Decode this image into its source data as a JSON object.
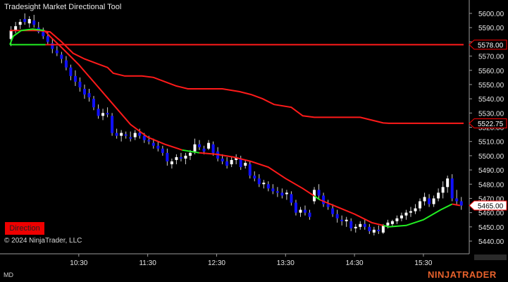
{
  "title": "Tradesight Market Directional Tool",
  "copyright": "© 2024 NinjaTrader, LLC",
  "direction_button": "Direction",
  "footer_left": "MD",
  "logo": "NINJATRADER",
  "colors": {
    "background": "#000000",
    "bull_candle": "#ffffff",
    "bear_candle": "#1010ff",
    "wick": "#cfcfcf",
    "red_line": "#ff1a1a",
    "green_line": "#22ee22",
    "price_marker": "#ff0000",
    "logo": "#e8622c"
  },
  "chart_data": {
    "type": "candlestick",
    "y_ticks": [
      "5600.00",
      "5590.00",
      "5580.00",
      "5570.00",
      "5560.00",
      "5550.00",
      "5540.00",
      "5530.00",
      "5520.00",
      "5510.00",
      "5500.00",
      "5490.00",
      "5480.00",
      "5470.00",
      "5460.00",
      "5450.00",
      "5440.00"
    ],
    "x_ticks": [
      "10:30",
      "11:30",
      "12:30",
      "13:30",
      "14:30",
      "15:30"
    ],
    "ylim": [
      5437.5,
      5606
    ],
    "xlim": [
      "09:30",
      "16:05"
    ],
    "price_labels": [
      {
        "label": "5578.00",
        "value": 5578.0,
        "style": "red"
      },
      {
        "label": "5522.75",
        "value": 5522.75,
        "style": "red"
      },
      {
        "label": "5465.00",
        "value": 5465.0,
        "style": "current"
      }
    ],
    "horizontal_levels": [
      {
        "value": 5578.0,
        "segments": [
          {
            "from": "09:30",
            "to": "10:01",
            "color": "green"
          },
          {
            "from": "10:01",
            "to": "16:05",
            "color": "red"
          }
        ]
      }
    ],
    "upper_red_line": [
      [
        "09:30",
        5588
      ],
      [
        "09:45",
        5588
      ],
      [
        "09:55",
        5588
      ],
      [
        "10:05",
        5587
      ],
      [
        "10:15",
        5580
      ],
      [
        "10:25",
        5572
      ],
      [
        "10:35",
        5568
      ],
      [
        "10:45",
        5565
      ],
      [
        "10:55",
        5562
      ],
      [
        "11:00",
        5558
      ],
      [
        "11:10",
        5556
      ],
      [
        "11:25",
        5556
      ],
      [
        "11:35",
        5555
      ],
      [
        "11:45",
        5552
      ],
      [
        "11:55",
        5549
      ],
      [
        "12:05",
        5547
      ],
      [
        "12:35",
        5547
      ],
      [
        "12:50",
        5545
      ],
      [
        "13:00",
        5543
      ],
      [
        "13:10",
        5540
      ],
      [
        "13:20",
        5536
      ],
      [
        "13:35",
        5534
      ],
      [
        "13:45",
        5528
      ],
      [
        "13:55",
        5527
      ],
      [
        "14:10",
        5527
      ],
      [
        "14:35",
        5527
      ],
      [
        "14:45",
        5525
      ],
      [
        "14:55",
        5523
      ],
      [
        "15:00",
        5522.75
      ],
      [
        "16:05",
        5522.75
      ]
    ],
    "lower_line": [
      [
        "09:30",
        5578
      ],
      [
        "09:33",
        5584
      ],
      [
        "09:40",
        5588
      ],
      [
        "09:50",
        5589
      ],
      [
        "10:00",
        5588
      ],
      [
        "10:06",
        5583
      ],
      [
        "10:15",
        5576
      ],
      [
        "10:30",
        5564
      ],
      [
        "10:45",
        5550
      ],
      [
        "11:00",
        5536
      ],
      [
        "11:15",
        5522
      ],
      [
        "11:30",
        5513
      ],
      [
        "11:45",
        5508
      ],
      [
        "12:00",
        5504
      ],
      [
        "12:15",
        5502
      ],
      [
        "12:30",
        5501
      ],
      [
        "12:45",
        5499
      ],
      [
        "13:00",
        5496
      ],
      [
        "13:15",
        5492
      ],
      [
        "13:30",
        5484
      ],
      [
        "13:45",
        5477
      ],
      [
        "14:00",
        5469
      ],
      [
        "14:15",
        5464
      ],
      [
        "14:30",
        5459
      ],
      [
        "14:45",
        5453
      ],
      [
        "15:00",
        5450
      ],
      [
        "15:15",
        5451
      ],
      [
        "15:30",
        5455
      ],
      [
        "15:45",
        5462
      ],
      [
        "15:55",
        5466
      ],
      [
        "16:02",
        5465
      ]
    ],
    "lower_line_colors": [
      {
        "from": "09:30",
        "to": "10:00",
        "color": "green"
      },
      {
        "from": "10:00",
        "to": "12:00",
        "color": "red"
      },
      {
        "from": "12:00",
        "to": "12:15",
        "color": "green"
      },
      {
        "from": "12:15",
        "to": "13:55",
        "color": "red"
      },
      {
        "from": "13:55",
        "to": "14:00",
        "color": "green"
      },
      {
        "from": "14:00",
        "to": "14:55",
        "color": "red"
      },
      {
        "from": "14:55",
        "to": "15:55",
        "color": "green"
      },
      {
        "from": "15:55",
        "to": "16:02",
        "color": "red"
      }
    ],
    "candles": [
      [
        "09:31",
        5582,
        5591,
        5577,
        5588
      ],
      [
        "09:35",
        5588,
        5594,
        5586,
        5591
      ],
      [
        "09:39",
        5592,
        5596,
        5589,
        5594
      ],
      [
        "09:43",
        5596,
        5600,
        5592,
        5594
      ],
      [
        "09:47",
        5593,
        5598,
        5590,
        5596
      ],
      [
        "09:51",
        5595,
        5599,
        5590,
        5592
      ],
      [
        "09:55",
        5590,
        5594,
        5586,
        5587
      ],
      [
        "09:59",
        5587,
        5590,
        5582,
        5584
      ],
      [
        "10:03",
        5584,
        5587,
        5578,
        5580
      ],
      [
        "10:07",
        5579,
        5582,
        5572,
        5575
      ],
      [
        "10:11",
        5574,
        5577,
        5570,
        5572
      ],
      [
        "10:15",
        5571,
        5573,
        5565,
        5568
      ],
      [
        "10:19",
        5567,
        5570,
        5560,
        5562
      ],
      [
        "10:23",
        5562,
        5564,
        5553,
        5556
      ],
      [
        "10:27",
        5556,
        5560,
        5549,
        5552
      ],
      [
        "10:31",
        5552,
        5555,
        5545,
        5548
      ],
      [
        "10:35",
        5547,
        5550,
        5540,
        5543
      ],
      [
        "10:39",
        5544,
        5547,
        5538,
        5541
      ],
      [
        "10:43",
        5540,
        5542,
        5532,
        5534
      ],
      [
        "10:47",
        5533,
        5536,
        5526,
        5528
      ],
      [
        "10:51",
        5528,
        5533,
        5525,
        5530
      ],
      [
        "10:55",
        5530,
        5534,
        5527,
        5529
      ],
      [
        "10:59",
        5528,
        5530,
        5514,
        5516
      ],
      [
        "11:03",
        5516,
        5519,
        5512,
        5514
      ],
      [
        "11:07",
        5514,
        5518,
        5510,
        5516
      ],
      [
        "11:11",
        5515,
        5517,
        5512,
        5514
      ],
      [
        "11:15",
        5513,
        5517,
        5510,
        5512
      ],
      [
        "11:19",
        5513,
        5518,
        5511,
        5516
      ],
      [
        "11:23",
        5516,
        5519,
        5512,
        5514
      ],
      [
        "11:27",
        5514,
        5516,
        5509,
        5511
      ],
      [
        "11:31",
        5511,
        5514,
        5508,
        5510
      ],
      [
        "11:35",
        5509,
        5512,
        5505,
        5507
      ],
      [
        "11:39",
        5507,
        5510,
        5503,
        5505
      ],
      [
        "11:43",
        5505,
        5507,
        5500,
        5502
      ],
      [
        "11:47",
        5502,
        5505,
        5493,
        5496
      ],
      [
        "11:51",
        5494,
        5498,
        5491,
        5496
      ],
      [
        "11:55",
        5497,
        5501,
        5494,
        5499
      ],
      [
        "11:59",
        5499,
        5502,
        5496,
        5498
      ],
      [
        "12:03",
        5498,
        5502,
        5494,
        5500
      ],
      [
        "12:07",
        5500,
        5504,
        5497,
        5502
      ],
      [
        "12:11",
        5503,
        5512,
        5501,
        5508
      ],
      [
        "12:15",
        5508,
        5511,
        5504,
        5506
      ],
      [
        "12:19",
        5505,
        5507,
        5501,
        5503
      ],
      [
        "12:23",
        5505,
        5511,
        5504,
        5509
      ],
      [
        "12:27",
        5508,
        5510,
        5500,
        5502
      ],
      [
        "12:31",
        5503,
        5506,
        5496,
        5498
      ],
      [
        "12:35",
        5498,
        5501,
        5494,
        5496
      ],
      [
        "12:39",
        5496,
        5499,
        5491,
        5493
      ],
      [
        "12:43",
        5494,
        5499,
        5492,
        5497
      ],
      [
        "12:47",
        5497,
        5501,
        5494,
        5499
      ],
      [
        "12:51",
        5498,
        5500,
        5490,
        5492
      ],
      [
        "12:55",
        5493,
        5497,
        5491,
        5495
      ],
      [
        "12:59",
        5494,
        5496,
        5484,
        5486
      ],
      [
        "13:03",
        5486,
        5489,
        5482,
        5484
      ],
      [
        "13:07",
        5484,
        5487,
        5478,
        5480
      ],
      [
        "13:11",
        5480,
        5483,
        5477,
        5481
      ],
      [
        "13:15",
        5480,
        5482,
        5475,
        5477
      ],
      [
        "13:19",
        5477,
        5480,
        5473,
        5475
      ],
      [
        "13:23",
        5475,
        5478,
        5471,
        5474
      ],
      [
        "13:27",
        5474,
        5477,
        5470,
        5472
      ],
      [
        "13:31",
        5473,
        5476,
        5469,
        5474
      ],
      [
        "13:35",
        5473,
        5475,
        5465,
        5467
      ],
      [
        "13:39",
        5467,
        5469,
        5458,
        5460
      ],
      [
        "13:43",
        5460,
        5464,
        5457,
        5462
      ],
      [
        "13:47",
        5462,
        5465,
        5458,
        5460
      ],
      [
        "13:51",
        5460,
        5462,
        5455,
        5457
      ],
      [
        "13:55",
        5468,
        5478,
        5466,
        5476
      ],
      [
        "13:59",
        5476,
        5480,
        5470,
        5472
      ],
      [
        "14:03",
        5472,
        5474,
        5464,
        5466
      ],
      [
        "14:07",
        5466,
        5469,
        5462,
        5464
      ],
      [
        "14:11",
        5463,
        5466,
        5457,
        5459
      ],
      [
        "14:15",
        5459,
        5462,
        5453,
        5456
      ],
      [
        "14:19",
        5455,
        5458,
        5451,
        5454
      ],
      [
        "14:23",
        5454,
        5457,
        5450,
        5455
      ],
      [
        "14:27",
        5454,
        5456,
        5447,
        5449
      ],
      [
        "14:31",
        5449,
        5452,
        5446,
        5450
      ],
      [
        "14:35",
        5450,
        5454,
        5448,
        5452
      ],
      [
        "14:39",
        5452,
        5455,
        5448,
        5450
      ],
      [
        "14:43",
        5450,
        5452,
        5445,
        5447
      ],
      [
        "14:47",
        5446,
        5450,
        5444,
        5448
      ],
      [
        "14:51",
        5448,
        5451,
        5445,
        5447
      ],
      [
        "14:55",
        5446,
        5452,
        5445,
        5451
      ],
      [
        "14:59",
        5451,
        5455,
        5449,
        5453
      ],
      [
        "15:03",
        5452,
        5455,
        5450,
        5454
      ],
      [
        "15:07",
        5454,
        5458,
        5452,
        5456
      ],
      [
        "15:11",
        5456,
        5460,
        5454,
        5458
      ],
      [
        "15:15",
        5458,
        5462,
        5455,
        5460
      ],
      [
        "15:19",
        5460,
        5464,
        5457,
        5461
      ],
      [
        "15:23",
        5461,
        5466,
        5459,
        5463
      ],
      [
        "15:27",
        5463,
        5470,
        5461,
        5468
      ],
      [
        "15:31",
        5468,
        5474,
        5465,
        5471
      ],
      [
        "15:35",
        5470,
        5473,
        5464,
        5466
      ],
      [
        "15:39",
        5466,
        5472,
        5464,
        5470
      ],
      [
        "15:43",
        5470,
        5477,
        5468,
        5474
      ],
      [
        "15:47",
        5474,
        5482,
        5470,
        5478
      ],
      [
        "15:51",
        5478,
        5486,
        5474,
        5484
      ],
      [
        "15:55",
        5484,
        5487,
        5468,
        5470
      ],
      [
        "15:59",
        5470,
        5476,
        5465,
        5468
      ],
      [
        "16:03",
        5468,
        5471,
        5462,
        5465
      ]
    ]
  }
}
